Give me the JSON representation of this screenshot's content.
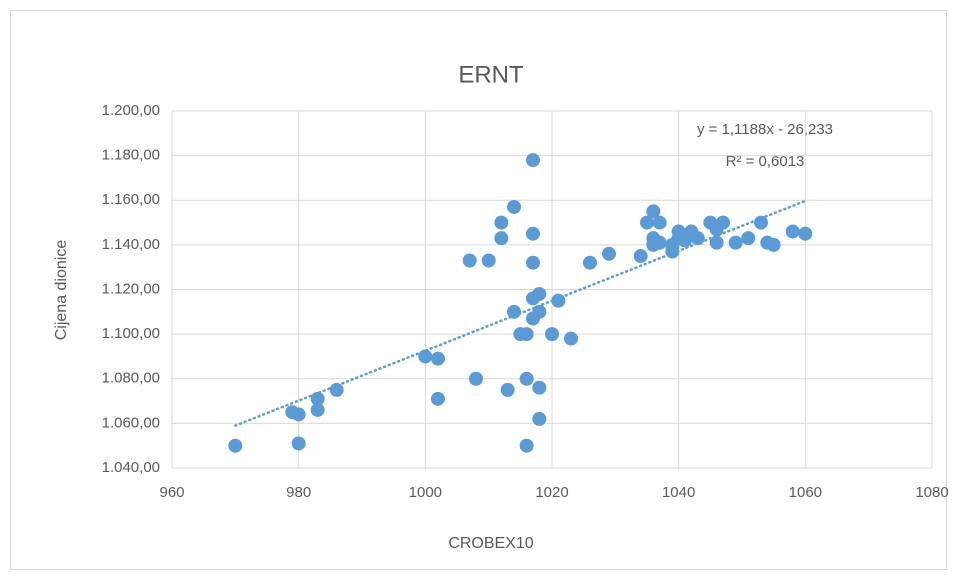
{
  "chart_data": {
    "type": "scatter",
    "title": "ERNT",
    "x_label": "CROBEX10",
    "y_label": "Cijena dionice",
    "x": [
      970,
      979,
      980,
      980,
      983,
      983,
      986,
      1000,
      1002,
      1002,
      1007,
      1010,
      1008,
      1012,
      1012,
      1014,
      1014,
      1013,
      1015,
      1016,
      1016,
      1017,
      1017,
      1017,
      1017,
      1017,
      1018,
      1018,
      1018,
      1018,
      1016,
      1020,
      1021,
      1023,
      1026,
      1029,
      1034,
      1035,
      1036,
      1036,
      1037,
      1036,
      1037,
      1039,
      1039,
      1039,
      1040,
      1040,
      1040,
      1041,
      1042,
      1043,
      1045,
      1046,
      1046,
      1047,
      1049,
      1051,
      1053,
      1054,
      1055,
      1058,
      1060
    ],
    "series": [
      {
        "name": "Cijena dionice",
        "color": "#5b9bd5",
        "values": [
          1050,
          1065,
          1064,
          1051,
          1066,
          1071,
          1075,
          1090,
          1089,
          1071,
          1133,
          1133,
          1080,
          1150,
          1143,
          1157,
          1110,
          1075,
          1100,
          1100,
          1080,
          1178,
          1145,
          1132,
          1116,
          1107,
          1110,
          1118,
          1062,
          1076,
          1050,
          1100,
          1115,
          1098,
          1132,
          1136,
          1135,
          1150,
          1155,
          1143,
          1150,
          1140,
          1141,
          1140,
          1139,
          1137,
          1143,
          1143,
          1146,
          1142,
          1146,
          1143,
          1150,
          1147,
          1141,
          1150,
          1141,
          1143,
          1150,
          1141,
          1140,
          1146,
          1145
        ]
      }
    ],
    "trendline": {
      "slope": 1.1188,
      "intercept": -26.233,
      "color": "#5b9bd5",
      "equation": "y = 1,1188x - 26,233",
      "r2": "R² = 0,6013"
    },
    "xlim": [
      960,
      1080
    ],
    "xticks": [
      960,
      980,
      1000,
      1020,
      1040,
      1060,
      1080
    ],
    "ylim": [
      1040,
      1200
    ],
    "yticks": [
      {
        "value": 1040,
        "label": "1.040,00"
      },
      {
        "value": 1060,
        "label": "1.060,00"
      },
      {
        "value": 1080,
        "label": "1.080,00"
      },
      {
        "value": 1100,
        "label": "1.100,00"
      },
      {
        "value": 1120,
        "label": "1.120,00"
      },
      {
        "value": 1140,
        "label": "1.140,00"
      },
      {
        "value": 1160,
        "label": "1.160,00"
      },
      {
        "value": 1180,
        "label": "1.180,00"
      },
      {
        "value": 1200,
        "label": "1.200,00"
      }
    ],
    "grid": true
  }
}
